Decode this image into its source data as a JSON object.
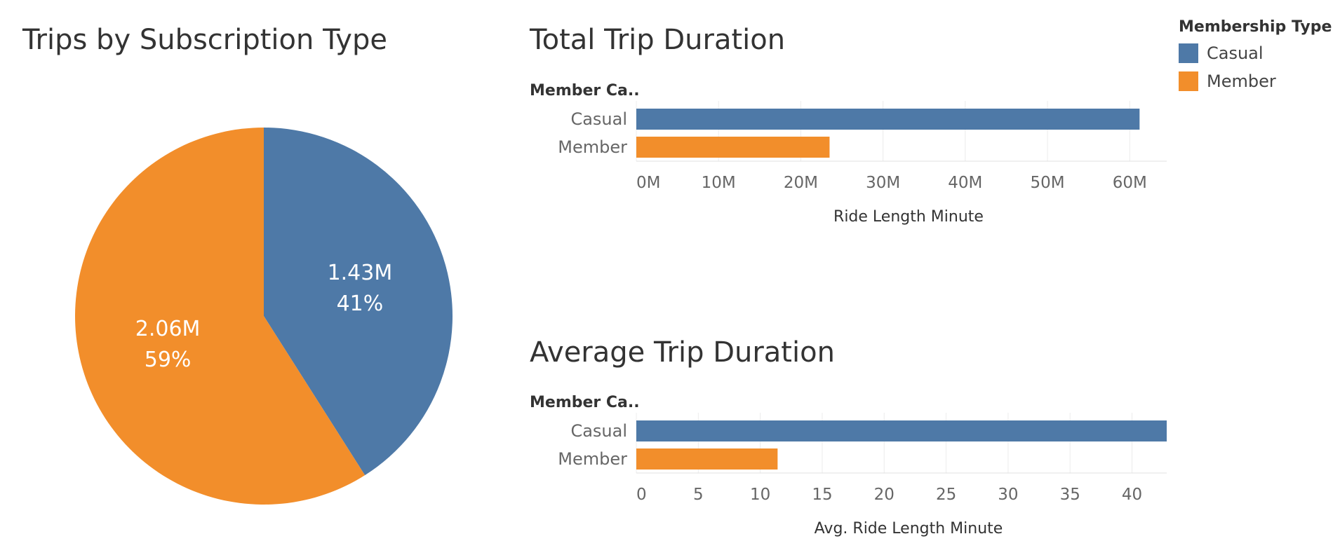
{
  "colors": {
    "casual": "#4e79a7",
    "member": "#f28e2b",
    "grid": "#ececec",
    "axis_line": "#e0e0e0",
    "text_dark": "#333333",
    "text_tick": "#666666",
    "slice_label": "#ffffff"
  },
  "legend": {
    "title": "Membership Type",
    "items": [
      {
        "label": "Casual",
        "color": "#4e79a7"
      },
      {
        "label": "Member",
        "color": "#f28e2b"
      }
    ]
  },
  "chart_data": [
    {
      "type": "pie",
      "title": "Trips by Subscription Type",
      "slices": [
        {
          "name": "Casual",
          "value": 1430000,
          "value_label": "1.43M",
          "percent_label": "41%",
          "percent": 41,
          "color": "#4e79a7"
        },
        {
          "name": "Member",
          "value": 2060000,
          "value_label": "2.06M",
          "percent_label": "59%",
          "percent": 59,
          "color": "#f28e2b"
        }
      ]
    },
    {
      "type": "bar",
      "orientation": "horizontal",
      "title": "Total Trip Duration",
      "row_header": "Member Ca..",
      "categories": [
        "Casual",
        "Member"
      ],
      "values": [
        61200000,
        23500000
      ],
      "colors": [
        "#4e79a7",
        "#f28e2b"
      ],
      "xlabel": "Ride Length Minute",
      "xlim": [
        0,
        64500000
      ],
      "ticks": [
        0,
        10000000,
        20000000,
        30000000,
        40000000,
        50000000,
        60000000
      ],
      "tick_labels": [
        "0M",
        "10M",
        "20M",
        "30M",
        "40M",
        "50M",
        "60M"
      ],
      "grid": true
    },
    {
      "type": "bar",
      "orientation": "horizontal",
      "title": "Average Trip Duration",
      "row_header": "Member Ca..",
      "categories": [
        "Casual",
        "Member"
      ],
      "values": [
        43,
        11.4
      ],
      "colors": [
        "#4e79a7",
        "#f28e2b"
      ],
      "xlabel": "Avg. Ride Length Minute",
      "xlim": [
        0,
        42.8
      ],
      "ticks": [
        0,
        5,
        10,
        15,
        20,
        25,
        30,
        35,
        40
      ],
      "tick_labels": [
        "0",
        "5",
        "10",
        "15",
        "20",
        "25",
        "30",
        "35",
        "40"
      ],
      "grid": true
    }
  ]
}
